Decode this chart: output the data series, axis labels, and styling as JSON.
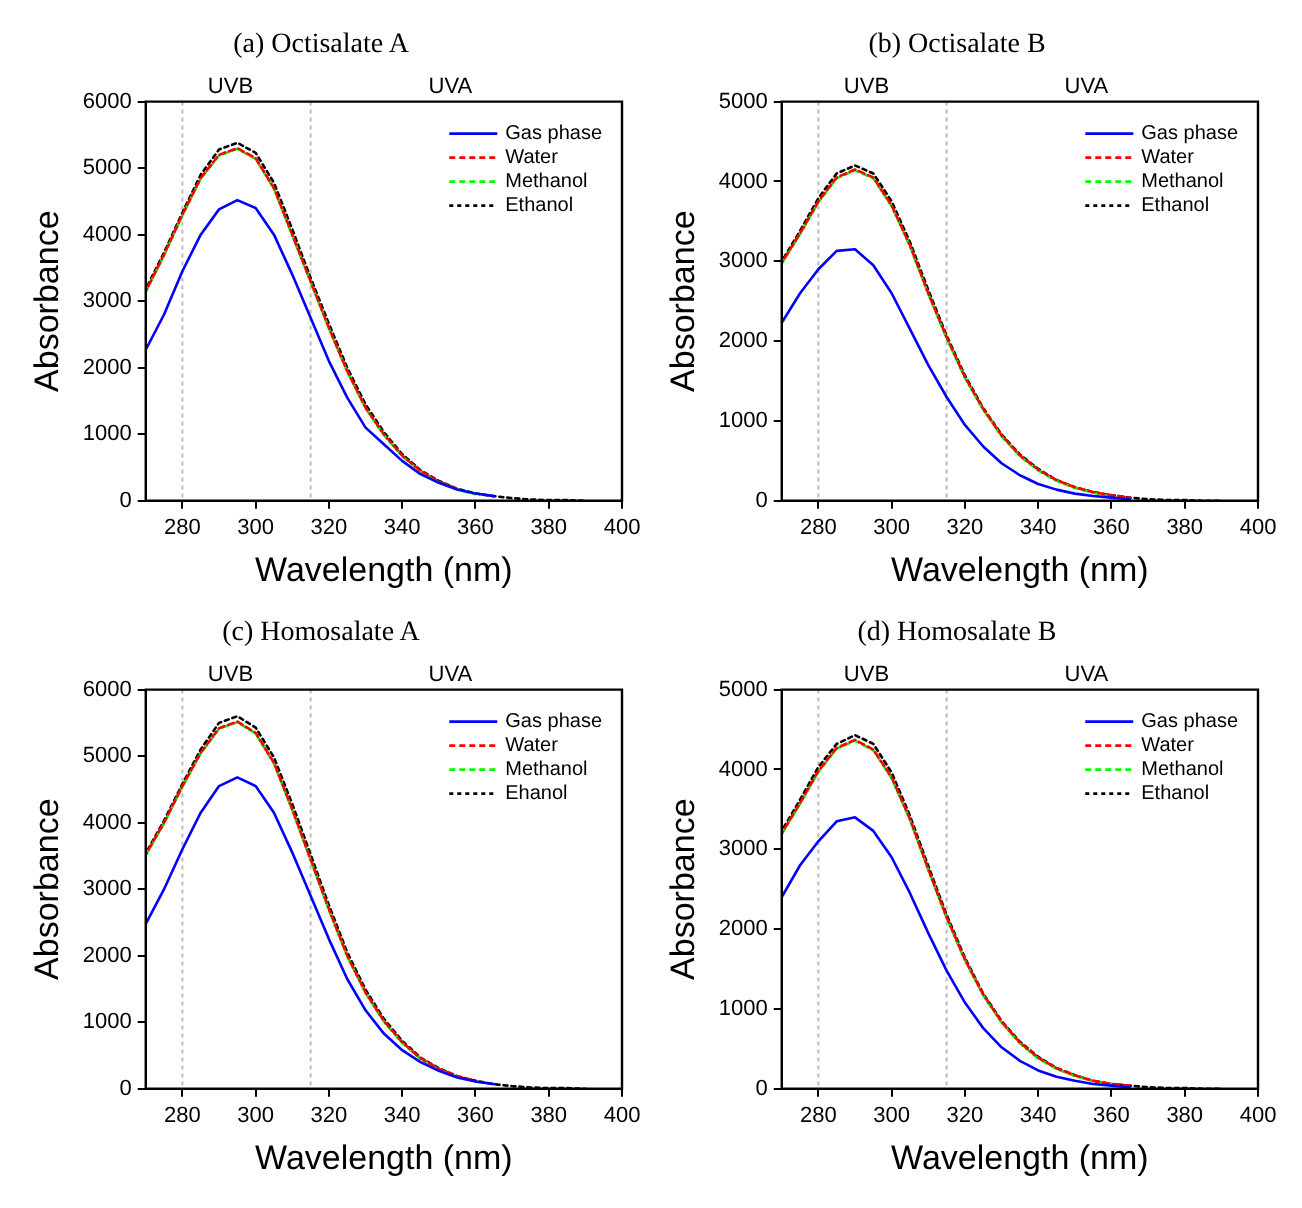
{
  "chart_data": [
    {
      "type": "line",
      "title": "(a) Octisalate A",
      "xlabel": "Wavelength (nm)",
      "ylabel": "Absorbance",
      "x": [
        270,
        275,
        280,
        285,
        290,
        295,
        300,
        305,
        310,
        315,
        320,
        325,
        330,
        335,
        340,
        345,
        350,
        355,
        360,
        365,
        370,
        375,
        380,
        385,
        390
      ],
      "series": [
        {
          "name": "Gas phase",
          "color": "#0000ff",
          "line_style": "solid",
          "values": [
            2270,
            2800,
            3450,
            4000,
            4380,
            4520,
            4400,
            4000,
            3400,
            2750,
            2100,
            1550,
            1100,
            850,
            600,
            400,
            270,
            170,
            110,
            70,
            null,
            null,
            null,
            null,
            null
          ]
        },
        {
          "name": "Water",
          "color": "#ff0000",
          "line_style": "dashed",
          "values": [
            3150,
            3700,
            4300,
            4850,
            5200,
            5300,
            5150,
            4700,
            4000,
            3300,
            2600,
            1950,
            1400,
            1000,
            680,
            450,
            290,
            180,
            null,
            null,
            null,
            null,
            null,
            null,
            null
          ]
        },
        {
          "name": "Methanol",
          "color": "#00ff00",
          "line_style": "dashed",
          "values": [
            3140,
            3690,
            4290,
            4840,
            5190,
            5290,
            5140,
            4690,
            3990,
            3290,
            2590,
            1940,
            1390,
            990,
            670,
            440,
            280,
            170,
            100,
            null,
            null,
            null,
            null,
            null,
            null
          ]
        },
        {
          "name": "Ethanol",
          "color": "#000000",
          "line_style": "dotted",
          "values": [
            3180,
            3730,
            4330,
            4900,
            5280,
            5380,
            5230,
            4780,
            4080,
            3350,
            2660,
            2000,
            1450,
            1030,
            700,
            460,
            300,
            180,
            110,
            70,
            40,
            20,
            10,
            10,
            0
          ]
        }
      ],
      "xlim": [
        270,
        400
      ],
      "xticks": [
        280,
        300,
        320,
        340,
        360,
        380,
        400
      ],
      "ylim": [
        0,
        6000
      ],
      "yticks": [
        0,
        1000,
        2000,
        3000,
        4000,
        5000,
        6000
      ],
      "legend": "top right",
      "marker": "none",
      "ref_lines": [
        {
          "axis": "x",
          "value": 280,
          "color": "#bbbbbb",
          "line_style": "dotted"
        },
        {
          "axis": "x",
          "value": 315,
          "color": "#bbbbbb",
          "line_style": "dotted"
        }
      ],
      "annotations": [
        "UVB",
        "UVA"
      ]
    },
    {
      "type": "line",
      "title": "(b) Octisalate B",
      "xlabel": "Wavelength (nm)",
      "ylabel": "Absorbance",
      "x": [
        270,
        275,
        280,
        285,
        290,
        295,
        300,
        305,
        310,
        315,
        320,
        325,
        330,
        335,
        340,
        345,
        350,
        355,
        360,
        365,
        370,
        375,
        380,
        385,
        390
      ],
      "series": [
        {
          "name": "Gas phase",
          "color": "#0000ff",
          "line_style": "solid",
          "values": [
            2230,
            2600,
            2900,
            3130,
            3150,
            2950,
            2600,
            2150,
            1700,
            1300,
            950,
            680,
            470,
            320,
            210,
            140,
            90,
            60,
            40,
            20,
            null,
            null,
            null,
            null,
            null
          ]
        },
        {
          "name": "Water",
          "color": "#ff0000",
          "line_style": "dashed",
          "values": [
            2980,
            3350,
            3750,
            4050,
            4150,
            4050,
            3700,
            3200,
            2600,
            2050,
            1550,
            1150,
            820,
            570,
            390,
            260,
            170,
            110,
            70,
            40,
            null,
            null,
            null,
            null,
            null
          ]
        },
        {
          "name": "Methanol",
          "color": "#00ff00",
          "line_style": "dashed",
          "values": [
            2970,
            3340,
            3740,
            4040,
            4140,
            4040,
            3690,
            3190,
            2590,
            2040,
            1540,
            1140,
            810,
            560,
            380,
            250,
            160,
            100,
            60,
            null,
            null,
            null,
            null,
            null,
            null
          ]
        },
        {
          "name": "Ethanol",
          "color": "#000000",
          "line_style": "dotted",
          "values": [
            3000,
            3380,
            3790,
            4100,
            4200,
            4100,
            3750,
            3240,
            2640,
            2070,
            1570,
            1160,
            830,
            580,
            400,
            260,
            170,
            110,
            70,
            40,
            20,
            10,
            10,
            0,
            0
          ]
        }
      ],
      "xlim": [
        270,
        400
      ],
      "xticks": [
        280,
        300,
        320,
        340,
        360,
        380,
        400
      ],
      "ylim": [
        0,
        5000
      ],
      "yticks": [
        0,
        1000,
        2000,
        3000,
        4000,
        5000
      ],
      "legend": "top right",
      "marker": "none",
      "ref_lines": [
        {
          "axis": "x",
          "value": 280,
          "color": "#bbbbbb",
          "line_style": "dotted"
        },
        {
          "axis": "x",
          "value": 315,
          "color": "#bbbbbb",
          "line_style": "dotted"
        }
      ],
      "annotations": [
        "UVB",
        "UVA"
      ]
    },
    {
      "type": "line",
      "title": "(c) Homosalate A",
      "xlabel": "Wavelength (nm)",
      "ylabel": "Absorbance",
      "x": [
        270,
        275,
        280,
        285,
        290,
        295,
        300,
        305,
        310,
        315,
        320,
        325,
        330,
        335,
        340,
        345,
        350,
        355,
        360,
        365,
        370,
        375,
        380,
        385,
        390
      ],
      "series": [
        {
          "name": "Gas phase",
          "color": "#0000ff",
          "line_style": "solid",
          "values": [
            2480,
            3000,
            3600,
            4150,
            4550,
            4680,
            4550,
            4150,
            3550,
            2900,
            2250,
            1650,
            1180,
            830,
            580,
            400,
            270,
            170,
            110,
            70,
            null,
            null,
            null,
            null,
            null
          ]
        },
        {
          "name": "Water",
          "color": "#ff0000",
          "line_style": "dashed",
          "values": [
            3520,
            4000,
            4550,
            5050,
            5420,
            5520,
            5350,
            4900,
            4200,
            3450,
            2700,
            2000,
            1450,
            1020,
            700,
            460,
            300,
            190,
            120,
            null,
            null,
            null,
            null,
            null,
            null
          ]
        },
        {
          "name": "Methanol",
          "color": "#00ff00",
          "line_style": "dashed",
          "values": [
            3510,
            3990,
            4540,
            5040,
            5410,
            5510,
            5340,
            4890,
            4190,
            3440,
            2690,
            1990,
            1440,
            1010,
            690,
            450,
            290,
            180,
            null,
            null,
            null,
            null,
            null,
            null,
            null
          ]
        },
        {
          "name": "Ehanol",
          "color": "#000000",
          "line_style": "dotted",
          "values": [
            3540,
            4030,
            4580,
            5100,
            5500,
            5600,
            5430,
            4980,
            4280,
            3520,
            2760,
            2050,
            1490,
            1050,
            720,
            470,
            310,
            190,
            120,
            70,
            40,
            20,
            10,
            10,
            0
          ]
        }
      ],
      "xlim": [
        270,
        400
      ],
      "xticks": [
        280,
        300,
        320,
        340,
        360,
        380,
        400
      ],
      "ylim": [
        0,
        6000
      ],
      "yticks": [
        0,
        1000,
        2000,
        3000,
        4000,
        5000,
        6000
      ],
      "legend": "top right",
      "marker": "none",
      "ref_lines": [
        {
          "axis": "x",
          "value": 280,
          "color": "#bbbbbb",
          "line_style": "dotted"
        },
        {
          "axis": "x",
          "value": 315,
          "color": "#bbbbbb",
          "line_style": "dotted"
        }
      ],
      "annotations": [
        "UVB",
        "UVA"
      ]
    },
    {
      "type": "line",
      "title": "(d) Homosalate B",
      "xlabel": "Wavelength (nm)",
      "ylabel": "Absorbance",
      "x": [
        270,
        275,
        280,
        285,
        290,
        295,
        300,
        305,
        310,
        315,
        320,
        325,
        330,
        335,
        340,
        345,
        350,
        355,
        360,
        365,
        370,
        375,
        380,
        385,
        390
      ],
      "series": [
        {
          "name": "Gas phase",
          "color": "#0000ff",
          "line_style": "solid",
          "values": [
            2400,
            2800,
            3100,
            3350,
            3400,
            3230,
            2900,
            2450,
            1950,
            1480,
            1080,
            760,
            520,
            350,
            230,
            150,
            100,
            60,
            40,
            20,
            null,
            null,
            null,
            null,
            null
          ]
        },
        {
          "name": "Water",
          "color": "#ff0000",
          "line_style": "dashed",
          "values": [
            3200,
            3580,
            3980,
            4270,
            4370,
            4250,
            3900,
            3380,
            2750,
            2150,
            1620,
            1180,
            840,
            580,
            390,
            260,
            170,
            100,
            60,
            40,
            null,
            null,
            null,
            null,
            null
          ]
        },
        {
          "name": "Methanol",
          "color": "#00ff00",
          "line_style": "dashed",
          "values": [
            3190,
            3570,
            3970,
            4260,
            4360,
            4240,
            3890,
            3370,
            2740,
            2140,
            1610,
            1170,
            830,
            570,
            380,
            250,
            160,
            100,
            60,
            null,
            null,
            null,
            null,
            null,
            null
          ]
        },
        {
          "name": "Ethanol",
          "color": "#000000",
          "line_style": "dotted",
          "values": [
            3230,
            3620,
            4030,
            4320,
            4430,
            4320,
            3960,
            3420,
            2790,
            2180,
            1640,
            1190,
            850,
            590,
            400,
            260,
            170,
            100,
            60,
            40,
            20,
            10,
            10,
            0,
            0
          ]
        }
      ],
      "xlim": [
        270,
        400
      ],
      "xticks": [
        280,
        300,
        320,
        340,
        360,
        380,
        400
      ],
      "ylim": [
        0,
        5000
      ],
      "yticks": [
        0,
        1000,
        2000,
        3000,
        4000,
        5000
      ],
      "legend": "top right",
      "marker": "none",
      "ref_lines": [
        {
          "axis": "x",
          "value": 280,
          "color": "#bbbbbb",
          "line_style": "dotted"
        },
        {
          "axis": "x",
          "value": 315,
          "color": "#bbbbbb",
          "line_style": "dotted"
        }
      ],
      "annotations": [
        "UVB",
        "UVA"
      ]
    }
  ]
}
